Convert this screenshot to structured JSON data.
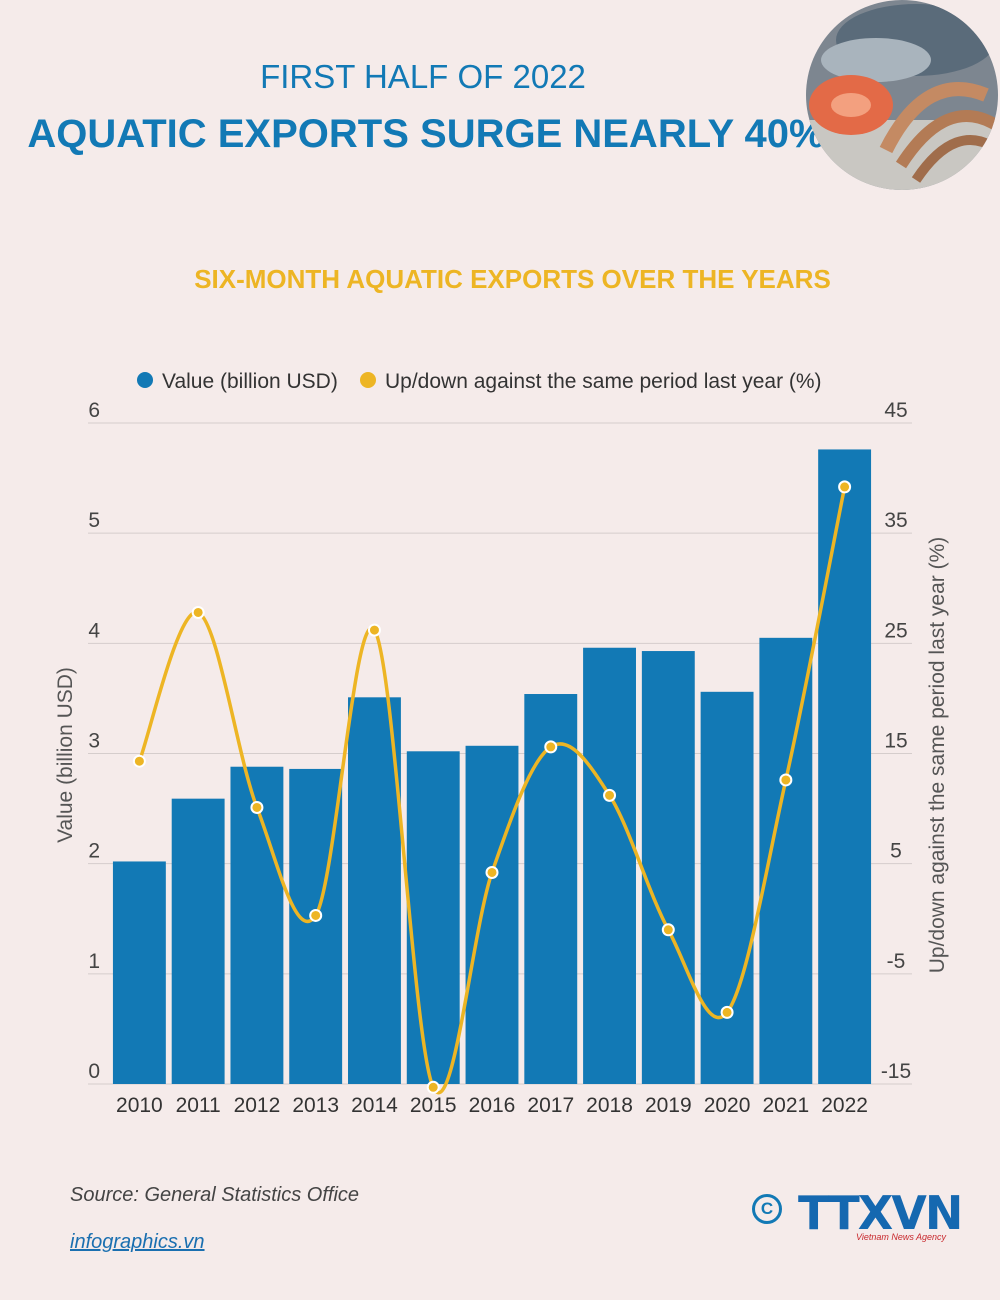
{
  "header": {
    "line1": "FIRST HALF OF 2022",
    "line2": "AQUATIC EXPORTS SURGE NEARLY 40%"
  },
  "footer": {
    "source": "Source: General Statistics Office",
    "link": "infographics.vn",
    "copyright_symbol": "C",
    "logo": "TTXVN",
    "logo_sub": "Vietnam News Agency"
  },
  "chart_data": {
    "type": "bar",
    "title": "SIX-MONTH AQUATIC EXPORTS OVER THE YEARS",
    "categories": [
      "2010",
      "2011",
      "2012",
      "2013",
      "2014",
      "2015",
      "2016",
      "2017",
      "2018",
      "2019",
      "2020",
      "2021",
      "2022"
    ],
    "series": [
      {
        "name": "Value (billion USD)",
        "type": "bar",
        "axis": "left",
        "color": "#1279b5",
        "values": [
          2.02,
          2.59,
          2.88,
          2.86,
          3.51,
          3.02,
          3.07,
          3.54,
          3.96,
          3.93,
          3.56,
          4.05,
          5.76
        ]
      },
      {
        "name": "Up/down against the same period last year (%)",
        "type": "line",
        "axis": "right",
        "color": "#edb524",
        "values": [
          14.3,
          27.8,
          10.1,
          0.3,
          26.2,
          -15.3,
          4.2,
          15.6,
          11.2,
          -1.0,
          -8.5,
          12.6,
          39.2
        ]
      }
    ],
    "ylabel": "Value (billion USD)",
    "ylabel_right": "Up/down against the same period last year (%)",
    "ylim": [
      0,
      6
    ],
    "ylim_right": [
      -15,
      45
    ],
    "yticks": [
      "0",
      "1",
      "2",
      "3",
      "4",
      "5",
      "6"
    ],
    "yticks_right": [
      "-15",
      "-5",
      "5",
      "15",
      "25",
      "35",
      "45"
    ],
    "grid": true,
    "legend": "top"
  }
}
